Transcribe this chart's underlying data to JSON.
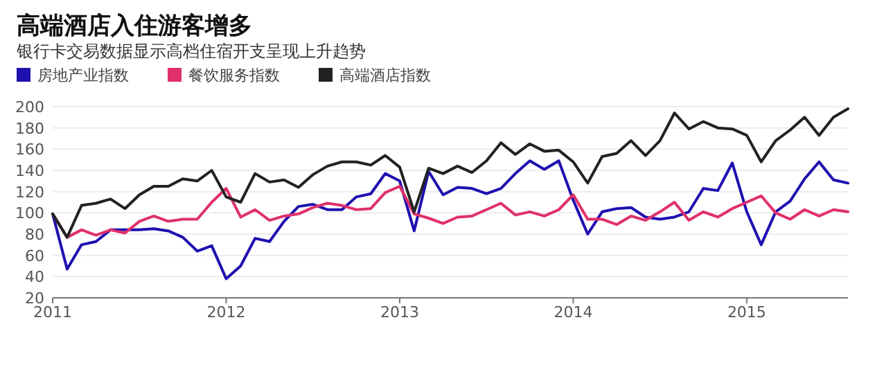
{
  "chart_data": {
    "type": "line",
    "title": "高端酒店入住游客增多",
    "subtitle": "银行卡交易数据显示高档住宿开支呈现上升趋势",
    "x": [
      "2011-01",
      "2011-02",
      "2011-03",
      "2011-04",
      "2011-05",
      "2011-06",
      "2011-07",
      "2011-08",
      "2011-09",
      "2011-10",
      "2011-11",
      "2011-12",
      "2012-01",
      "2012-02",
      "2012-03",
      "2012-04",
      "2012-05",
      "2012-06",
      "2012-07",
      "2012-08",
      "2012-09",
      "2012-10",
      "2012-11",
      "2012-12",
      "2013-01",
      "2013-02",
      "2013-03",
      "2013-04",
      "2013-05",
      "2013-06",
      "2013-07",
      "2013-08",
      "2013-09",
      "2013-10",
      "2013-11",
      "2013-12",
      "2014-01",
      "2014-02",
      "2014-03",
      "2014-04",
      "2014-05",
      "2014-06",
      "2014-07",
      "2014-08",
      "2014-09",
      "2014-10",
      "2014-11",
      "2014-12",
      "2015-01",
      "2015-02",
      "2015-03",
      "2015-04",
      "2015-05",
      "2015-06",
      "2015-07",
      "2015-08"
    ],
    "series": [
      {
        "name": "房地产业指数",
        "color": "#1f10b0",
        "values": [
          99,
          47,
          70,
          73,
          84,
          84,
          84,
          85,
          83,
          77,
          64,
          69,
          38,
          50,
          76,
          73,
          92,
          106,
          108,
          103,
          103,
          115,
          118,
          137,
          130,
          83,
          139,
          117,
          124,
          123,
          118,
          123,
          137,
          149,
          141,
          149,
          112,
          80,
          101,
          104,
          105,
          96,
          94,
          96,
          101,
          123,
          121,
          147,
          101,
          70,
          101,
          111,
          132,
          148,
          131,
          128
        ]
      },
      {
        "name": "餐饮服务指数",
        "color": "#e0306a",
        "values": [
          99,
          77,
          84,
          79,
          84,
          81,
          92,
          97,
          92,
          94,
          94,
          110,
          123,
          96,
          103,
          93,
          97,
          99,
          105,
          109,
          107,
          103,
          104,
          119,
          125,
          99,
          95,
          90,
          96,
          97,
          103,
          109,
          98,
          101,
          97,
          103,
          117,
          94,
          94,
          89,
          97,
          93,
          101,
          110,
          93,
          101,
          96,
          104,
          110,
          116,
          100,
          94,
          103,
          97,
          103,
          101
        ]
      },
      {
        "name": "高端酒店指数",
        "color": "#222222",
        "values": [
          99,
          77,
          107,
          109,
          113,
          104,
          117,
          125,
          125,
          132,
          130,
          140,
          115,
          110,
          137,
          129,
          131,
          124,
          136,
          144,
          148,
          148,
          145,
          154,
          143,
          101,
          142,
          137,
          144,
          138,
          149,
          166,
          155,
          165,
          158,
          159,
          148,
          128,
          153,
          156,
          168,
          154,
          168,
          194,
          179,
          186,
          180,
          179,
          173,
          148,
          168,
          178,
          190,
          173,
          190,
          198
        ]
      }
    ],
    "xlim": [
      "2011-01",
      "2015-08"
    ],
    "xticks": [
      {
        "value": "2011-01",
        "label": "2011"
      },
      {
        "value": "2012-01",
        "label": "2012"
      },
      {
        "value": "2013-01",
        "label": "2013"
      },
      {
        "value": "2014-01",
        "label": "2014"
      },
      {
        "value": "2015-01",
        "label": "2015"
      }
    ],
    "ylim": [
      20,
      200
    ],
    "yticks": [
      20,
      40,
      60,
      80,
      100,
      120,
      140,
      160,
      180,
      200
    ],
    "grid": "y",
    "legend": "top left",
    "marker": "none",
    "line_style": "solid"
  }
}
